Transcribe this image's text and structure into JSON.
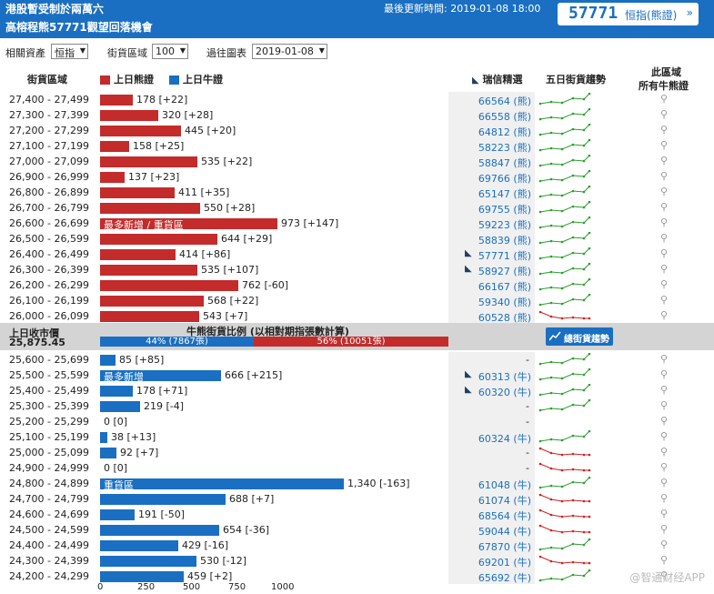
{
  "banner": {
    "title1": "港股暫受制於兩萬六",
    "title2": "高榕程熊57771觀望回落機會",
    "updated": "最後更新時間: 2019-01-08 18:00",
    "code": "57771",
    "index_label": "恒指(熊證)",
    "arrow": "»"
  },
  "filters": {
    "asset_label": "相關資產",
    "asset_value": "恒指",
    "zone_label": "街貨區域",
    "zone_value": "100",
    "date_label": "過往圖表",
    "date_value": "2019-01-08"
  },
  "header": {
    "zone": "街貨區域",
    "bear_legend": "上日熊證",
    "bull_legend": "上日牛證",
    "ubs": "瑞信精選",
    "trend": "五日街貨趨勢",
    "all1": "此區域",
    "all2": "所有牛熊證"
  },
  "colors": {
    "bear": "#c42b2b",
    "bull": "#1a6fc2",
    "up": "#2aa02a",
    "down": "#d02020"
  },
  "icons": {
    "search": "magnifier-icon",
    "ubs": "ubs-keys-icon",
    "chart": "line-chart-icon"
  },
  "bear_rows": [
    {
      "range": "27,400 - 27,499",
      "value": 178,
      "label": "178 [+22]",
      "warrant": "66564 (熊)",
      "ubs": false,
      "trend": "up"
    },
    {
      "range": "27,300 - 27,399",
      "value": 320,
      "label": "320 [+28]",
      "warrant": "66558 (熊)",
      "ubs": false,
      "trend": "up"
    },
    {
      "range": "27,200 - 27,299",
      "value": 445,
      "label": "445 [+20]",
      "warrant": "64812 (熊)",
      "ubs": false,
      "trend": "up"
    },
    {
      "range": "27,100 - 27,199",
      "value": 158,
      "label": "158 [+25]",
      "warrant": "58223 (熊)",
      "ubs": false,
      "trend": "up"
    },
    {
      "range": "27,000 - 27,099",
      "value": 535,
      "label": "535 [+22]",
      "warrant": "58847 (熊)",
      "ubs": false,
      "trend": "up"
    },
    {
      "range": "26,900 - 26,999",
      "value": 137,
      "label": "137 [+23]",
      "warrant": "69766 (熊)",
      "ubs": false,
      "trend": "up"
    },
    {
      "range": "26,800 - 26,899",
      "value": 411,
      "label": "411 [+35]",
      "warrant": "65147 (熊)",
      "ubs": false,
      "trend": "up"
    },
    {
      "range": "26,700 - 26,799",
      "value": 550,
      "label": "550 [+28]",
      "warrant": "69755 (熊)",
      "ubs": false,
      "trend": "up"
    },
    {
      "range": "26,600 - 26,699",
      "value": 973,
      "label": "973 [+147]",
      "warrant": "59223 (熊)",
      "ubs": false,
      "trend": "up",
      "note": "最多新增 / 重貨區"
    },
    {
      "range": "26,500 - 26,599",
      "value": 644,
      "label": "644 [+29]",
      "warrant": "58839 (熊)",
      "ubs": false,
      "trend": "up"
    },
    {
      "range": "26,400 - 26,499",
      "value": 414,
      "label": "414 [+86]",
      "warrant": "57771 (熊)",
      "ubs": true,
      "trend": "up"
    },
    {
      "range": "26,300 - 26,399",
      "value": 535,
      "label": "535 [+107]",
      "warrant": "58927 (熊)",
      "ubs": true,
      "trend": "up"
    },
    {
      "range": "26,200 - 26,299",
      "value": 762,
      "label": "762 [-60]",
      "warrant": "66167 (熊)",
      "ubs": false,
      "trend": "up"
    },
    {
      "range": "26,100 - 26,199",
      "value": 568,
      "label": "568 [+22]",
      "warrant": "59340 (熊)",
      "ubs": false,
      "trend": "up"
    },
    {
      "range": "26,000 - 26,099",
      "value": 543,
      "label": "543 [+7]",
      "warrant": "60528 (熊)",
      "ubs": false,
      "trend": "down"
    }
  ],
  "middle": {
    "close_label": "上日收市價",
    "close_value": "25,875.45",
    "ratio_title": "牛熊街貨比例 (以相對期指張數計算)",
    "bull_pct": 44,
    "bull_text": "44% (7867張)",
    "bear_pct": 56,
    "bear_text": "56% (10051張)",
    "button": "總街貨趨勢"
  },
  "bull_rows": [
    {
      "range": "25,600 - 25,699",
      "value": 85,
      "label": "85 [+85]",
      "warrant": "-",
      "ubs": false,
      "trend": "up"
    },
    {
      "range": "25,500 - 25,599",
      "value": 666,
      "label": "666 [+215]",
      "warrant": "60313 (牛)",
      "ubs": true,
      "trend": "up",
      "note": "最多新增"
    },
    {
      "range": "25,400 - 25,499",
      "value": 178,
      "label": "178 [+71]",
      "warrant": "60320 (牛)",
      "ubs": true,
      "trend": "up"
    },
    {
      "range": "25,300 - 25,399",
      "value": 219,
      "label": "219 [-4]",
      "warrant": "-",
      "ubs": false,
      "trend": "up"
    },
    {
      "range": "25,200 - 25,299",
      "value": 0,
      "label": "0 [0]",
      "warrant": "-",
      "ubs": false,
      "trend": "none"
    },
    {
      "range": "25,100 - 25,199",
      "value": 38,
      "label": "38 [+13]",
      "warrant": "60324 (牛)",
      "ubs": false,
      "trend": "up"
    },
    {
      "range": "25,000 - 25,099",
      "value": 92,
      "label": "92 [+7]",
      "warrant": "-",
      "ubs": false,
      "trend": "down"
    },
    {
      "range": "24,900 - 24,999",
      "value": 0,
      "label": "0 [0]",
      "warrant": "-",
      "ubs": false,
      "trend": "down"
    },
    {
      "range": "24,800 - 24,899",
      "value": 1340,
      "label": "1,340 [-163]",
      "warrant": "61048 (牛)",
      "ubs": false,
      "trend": "up",
      "note": "重貨區"
    },
    {
      "range": "24,700 - 24,799",
      "value": 688,
      "label": "688 [+7]",
      "warrant": "61074 (牛)",
      "ubs": false,
      "trend": "down"
    },
    {
      "range": "24,600 - 24,699",
      "value": 191,
      "label": "191 [-50]",
      "warrant": "68564 (牛)",
      "ubs": false,
      "trend": "down"
    },
    {
      "range": "24,500 - 24,599",
      "value": 654,
      "label": "654 [-36]",
      "warrant": "59044 (牛)",
      "ubs": false,
      "trend": "down"
    },
    {
      "range": "24,400 - 24,499",
      "value": 429,
      "label": "429 [-16]",
      "warrant": "67870 (牛)",
      "ubs": false,
      "trend": "up"
    },
    {
      "range": "24,300 - 24,399",
      "value": 530,
      "label": "530 [-12]",
      "warrant": "69201 (牛)",
      "ubs": false,
      "trend": "down"
    },
    {
      "range": "24,200 - 24,299",
      "value": 459,
      "label": "459 [+2]",
      "warrant": "65692 (牛)",
      "ubs": false,
      "trend": "up"
    }
  ],
  "x_axis": {
    "ticks": [
      "0",
      "250",
      "500",
      "750",
      "1000"
    ],
    "max": 1000
  },
  "watermark": "@智通财经APP"
}
